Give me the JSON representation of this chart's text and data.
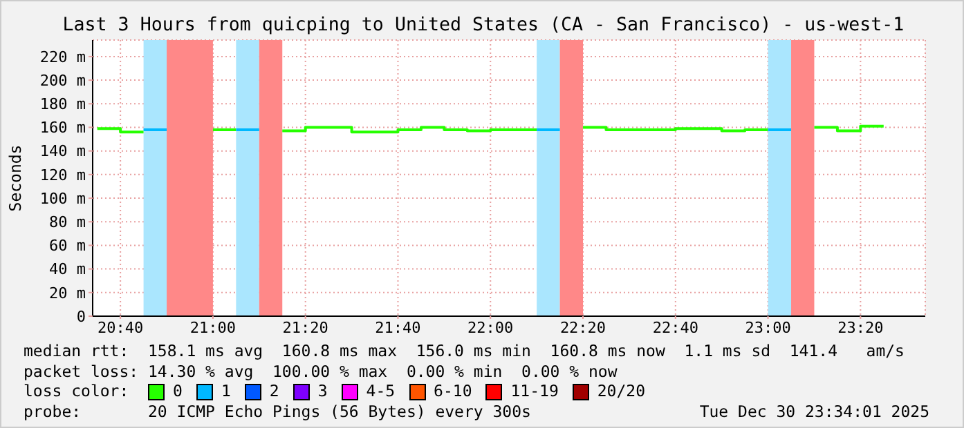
{
  "chart_data": {
    "type": "step",
    "title": "Last 3 Hours from quicping to United States (CA - San Francisco) - us-west-1",
    "ylabel": "Seconds",
    "series": [
      {
        "name": "0",
        "color": "#26ff00",
        "x": [
          "2025-12-30T20:35",
          "2025-12-30T20:40",
          "2025-12-30T20:45"
        ],
        "values": [
          159,
          156,
          156
        ]
      },
      {
        "name": "1",
        "color": "#00b8ff",
        "x": [
          "2025-12-30T20:45",
          "2025-12-30T20:50"
        ],
        "values": [
          158,
          158
        ]
      },
      {
        "color": "#26ff00",
        "x": [
          "2025-12-30T21:00",
          "2025-12-30T21:05"
        ],
        "values": [
          158,
          158
        ]
      },
      {
        "color": "#00b8ff",
        "x": [
          "2025-12-30T21:05",
          "2025-12-30T21:10"
        ],
        "values": [
          158,
          158
        ]
      },
      {
        "color": "#26ff00",
        "x": [
          "2025-12-30T21:15",
          "2025-12-30T21:20",
          "2025-12-30T21:25",
          "2025-12-30T21:30",
          "2025-12-30T21:35",
          "2025-12-30T21:40",
          "2025-12-30T21:45",
          "2025-12-30T21:50",
          "2025-12-30T21:55",
          "2025-12-30T22:00",
          "2025-12-30T22:05",
          "2025-12-30T22:10"
        ],
        "values": [
          157,
          160,
          160,
          156,
          156,
          158,
          160,
          158,
          157,
          158,
          158,
          158
        ]
      },
      {
        "color": "#00b8ff",
        "x": [
          "2025-12-30T22:10",
          "2025-12-30T22:15"
        ],
        "values": [
          158,
          158
        ]
      },
      {
        "color": "#26ff00",
        "x": [
          "2025-12-30T22:20",
          "2025-12-30T22:25",
          "2025-12-30T22:30",
          "2025-12-30T22:35",
          "2025-12-30T22:40",
          "2025-12-30T22:45",
          "2025-12-30T22:50",
          "2025-12-30T22:55",
          "2025-12-30T23:00"
        ],
        "values": [
          160,
          158,
          158,
          158,
          159,
          159,
          157,
          158,
          158
        ]
      },
      {
        "color": "#00b8ff",
        "x": [
          "2025-12-30T23:00",
          "2025-12-30T23:05"
        ],
        "values": [
          158,
          158
        ]
      },
      {
        "color": "#26ff00",
        "x": [
          "2025-12-30T23:10",
          "2025-12-30T23:15",
          "2025-12-30T23:20",
          "2025-12-30T23:25"
        ],
        "values": [
          160,
          157,
          161,
          161
        ]
      },
      {
        "name": "2",
        "color": "#0059ff"
      },
      {
        "name": "3",
        "color": "#7e00ff"
      },
      {
        "name": "4-5",
        "color": "#ff00ff"
      },
      {
        "name": "6-10",
        "color": "#ff5500"
      },
      {
        "name": "11-19",
        "color": "#ff0000"
      },
      {
        "name": "20/20",
        "color": "#a10000"
      }
    ],
    "bands": [
      {
        "axis": "x",
        "from": "2025-12-30T20:45",
        "to": "2025-12-30T20:50",
        "color": "#aae6fe"
      },
      {
        "axis": "x",
        "from": "2025-12-30T20:50",
        "to": "2025-12-30T21:00",
        "color": "#ff8888"
      },
      {
        "axis": "x",
        "from": "2025-12-30T21:05",
        "to": "2025-12-30T21:10",
        "color": "#aae6fe"
      },
      {
        "axis": "x",
        "from": "2025-12-30T21:10",
        "to": "2025-12-30T21:15",
        "color": "#ff8888"
      },
      {
        "axis": "x",
        "from": "2025-12-30T22:10",
        "to": "2025-12-30T22:15",
        "color": "#aae6fe"
      },
      {
        "axis": "x",
        "from": "2025-12-30T22:15",
        "to": "2025-12-30T22:20",
        "color": "#ff8888"
      },
      {
        "axis": "x",
        "from": "2025-12-30T23:00",
        "to": "2025-12-30T23:05",
        "color": "#aae6fe"
      },
      {
        "axis": "x",
        "from": "2025-12-30T23:05",
        "to": "2025-12-30T23:10",
        "color": "#ff8888"
      }
    ],
    "xlim": [
      "2025-12-30T20:34",
      "2025-12-30T23:34"
    ],
    "xticks": [
      {
        "value": "2025-12-30T20:40",
        "label": "20:40"
      },
      {
        "value": "2025-12-30T21:00",
        "label": "21:00"
      },
      {
        "value": "2025-12-30T21:20",
        "label": "21:20"
      },
      {
        "value": "2025-12-30T21:40",
        "label": "21:40"
      },
      {
        "value": "2025-12-30T22:00",
        "label": "22:00"
      },
      {
        "value": "2025-12-30T22:20",
        "label": "22:20"
      },
      {
        "value": "2025-12-30T22:40",
        "label": "22:40"
      },
      {
        "value": "2025-12-30T23:00",
        "label": "23:00"
      },
      {
        "value": "2025-12-30T23:20",
        "label": "23:20"
      }
    ],
    "ylim": [
      0,
      234
    ],
    "yticks": [
      0,
      {
        "value": 20,
        "label": "20 m"
      },
      {
        "value": 40,
        "label": "40 m"
      },
      {
        "value": 60,
        "label": "60 m"
      },
      {
        "value": 80,
        "label": "80 m"
      },
      {
        "value": 100,
        "label": "100 m"
      },
      {
        "value": 120,
        "label": "120 m"
      },
      {
        "value": 140,
        "label": "140 m"
      },
      {
        "value": 160,
        "label": "160 m"
      },
      {
        "value": 180,
        "label": "180 m"
      },
      {
        "value": 200,
        "label": "200 m"
      },
      {
        "value": 220,
        "label": "220 m"
      }
    ],
    "grid": true,
    "legend": "bottom",
    "legend_title": "loss color:",
    "annotations": [
      "median rtt:  158.1 ms avg  160.8 ms max  156.0 ms min  160.8 ms now  1.1 ms sd  141.4   am/s",
      "packet loss: 14.30 % avg  100.00 % max  0.00 % min  0.00 % now",
      "probe:       20 ICMP Echo Pings (56 Bytes) every 300s",
      "Tue Dec 30 23:34:01 2025"
    ]
  }
}
